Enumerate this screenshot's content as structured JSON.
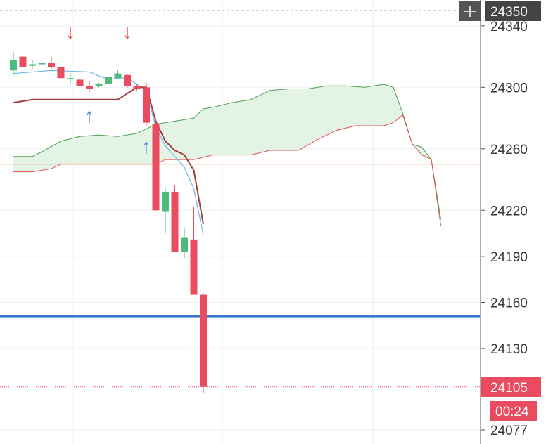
{
  "chart_data": {
    "type": "candlestick",
    "title": "",
    "xlabel": "",
    "ylabel": "",
    "ylim": [
      24077,
      24350
    ],
    "grid": true,
    "y_ticks": [
      24340,
      24300,
      24260,
      24220,
      24190,
      24160,
      24130,
      24077
    ],
    "price_label": "24105",
    "top_label": "24350",
    "countdown_label": "00:24",
    "crosshair_icon": "plus-icon",
    "colors": {
      "up": "#4fba7d",
      "down": "#ea4c5f",
      "cloud_fill": "#e4f4e4",
      "span_a": "#4d9e4d",
      "span_b": "#e05050",
      "baseline": "#f0a070",
      "support": "#3a78d0",
      "tenkan": "#6bb8e8",
      "kijun": "#a03c3c",
      "arrow_up": "#4a8fe0",
      "arrow_down": "#e04040"
    },
    "levels": {
      "baseline": 24250,
      "support": 24151,
      "last_price": 24105
    },
    "candles": [
      {
        "i": 0,
        "o": 24311,
        "h": 24323,
        "l": 24308,
        "c": 24318
      },
      {
        "i": 1,
        "o": 24320,
        "h": 24322,
        "l": 24310,
        "c": 24313
      },
      {
        "i": 2,
        "o": 24314,
        "h": 24318,
        "l": 24312,
        "c": 24315
      },
      {
        "i": 3,
        "o": 24315,
        "h": 24317,
        "l": 24313,
        "c": 24316
      },
      {
        "i": 4,
        "o": 24316,
        "h": 24320,
        "l": 24312,
        "c": 24313
      },
      {
        "i": 5,
        "o": 24313,
        "h": 24314,
        "l": 24305,
        "c": 24306
      },
      {
        "i": 6,
        "o": 24306,
        "h": 24309,
        "l": 24302,
        "c": 24306
      },
      {
        "i": 7,
        "o": 24305,
        "h": 24307,
        "l": 24299,
        "c": 24301
      },
      {
        "i": 8,
        "o": 24301,
        "h": 24304,
        "l": 24297,
        "c": 24299
      },
      {
        "i": 9,
        "o": 24301,
        "h": 24303,
        "l": 24300,
        "c": 24302
      },
      {
        "i": 10,
        "o": 24302,
        "h": 24307,
        "l": 24302,
        "c": 24307
      },
      {
        "i": 11,
        "o": 24306,
        "h": 24311,
        "l": 24306,
        "c": 24309
      },
      {
        "i": 12,
        "o": 24308,
        "h": 24309,
        "l": 24300,
        "c": 24301
      },
      {
        "i": 13,
        "o": 24301,
        "h": 24302,
        "l": 24298,
        "c": 24299
      },
      {
        "i": 14,
        "o": 24300,
        "h": 24303,
        "l": 24275,
        "c": 24277
      },
      {
        "i": 15,
        "o": 24276,
        "h": 24277,
        "l": 24220,
        "c": 24220
      },
      {
        "i": 16,
        "o": 24219,
        "h": 24235,
        "l": 24205,
        "c": 24232
      },
      {
        "i": 17,
        "o": 24232,
        "h": 24236,
        "l": 24193,
        "c": 24193
      },
      {
        "i": 18,
        "o": 24193,
        "h": 24209,
        "l": 24189,
        "c": 24202
      },
      {
        "i": 19,
        "o": 24201,
        "h": 24222,
        "l": 24165,
        "c": 24165
      },
      {
        "i": 20,
        "o": 24165,
        "h": 24166,
        "l": 24101,
        "c": 24105
      }
    ],
    "tenkan": [
      [
        0,
        24309
      ],
      [
        4,
        24311
      ],
      [
        8,
        24310
      ],
      [
        10,
        24305
      ],
      [
        11,
        24306
      ],
      [
        12,
        24306
      ],
      [
        13,
        24302
      ],
      [
        14,
        24298
      ],
      [
        15,
        24274
      ],
      [
        16,
        24262
      ],
      [
        17,
        24255
      ],
      [
        18,
        24248
      ],
      [
        19,
        24234
      ],
      [
        20,
        24204
      ]
    ],
    "kijun": [
      [
        0,
        24290
      ],
      [
        2,
        24292
      ],
      [
        11,
        24292
      ],
      [
        13,
        24300
      ],
      [
        14,
        24300
      ],
      [
        15,
        24278
      ],
      [
        16,
        24265
      ],
      [
        17,
        24259
      ],
      [
        18,
        24256
      ],
      [
        19,
        24246
      ],
      [
        20,
        24211
      ]
    ],
    "span_a": [
      [
        0,
        24255
      ],
      [
        2,
        24255
      ],
      [
        3,
        24258
      ],
      [
        5,
        24265
      ],
      [
        7,
        24268
      ],
      [
        9,
        24269
      ],
      [
        11,
        24268
      ],
      [
        13,
        24270
      ],
      [
        15,
        24276
      ],
      [
        17,
        24278
      ],
      [
        19,
        24280
      ],
      [
        20,
        24286
      ],
      [
        21,
        24287
      ],
      [
        23,
        24290
      ],
      [
        25,
        24292
      ],
      [
        27,
        24298
      ],
      [
        29,
        24299
      ],
      [
        31,
        24299
      ],
      [
        33,
        24301
      ],
      [
        35,
        24301
      ],
      [
        37,
        24300
      ],
      [
        39,
        24302
      ],
      [
        40,
        24300
      ],
      [
        41,
        24283
      ],
      [
        42,
        24263
      ],
      [
        43,
        24261
      ],
      [
        44,
        24253
      ],
      [
        45,
        24214
      ]
    ],
    "span_b": [
      [
        0,
        24245
      ],
      [
        2,
        24245
      ],
      [
        4,
        24247
      ],
      [
        5,
        24250
      ],
      [
        15,
        24250
      ],
      [
        16,
        24253
      ],
      [
        19,
        24253
      ],
      [
        21,
        24256
      ],
      [
        25,
        24256
      ],
      [
        27,
        24259
      ],
      [
        30,
        24259
      ],
      [
        32,
        24266
      ],
      [
        34,
        24272
      ],
      [
        36,
        24275
      ],
      [
        39,
        24275
      ],
      [
        40,
        24277
      ],
      [
        41,
        24282
      ],
      [
        42,
        24263
      ],
      [
        43,
        24256
      ],
      [
        44,
        24253
      ],
      [
        45,
        24210
      ]
    ],
    "arrows": [
      {
        "i": 6,
        "dir": "down",
        "y": 24335
      },
      {
        "i": 12,
        "dir": "down",
        "y": 24335
      },
      {
        "i": 8,
        "dir": "up",
        "y": 24281
      },
      {
        "i": 14,
        "dir": "up",
        "y": 24261
      }
    ]
  }
}
